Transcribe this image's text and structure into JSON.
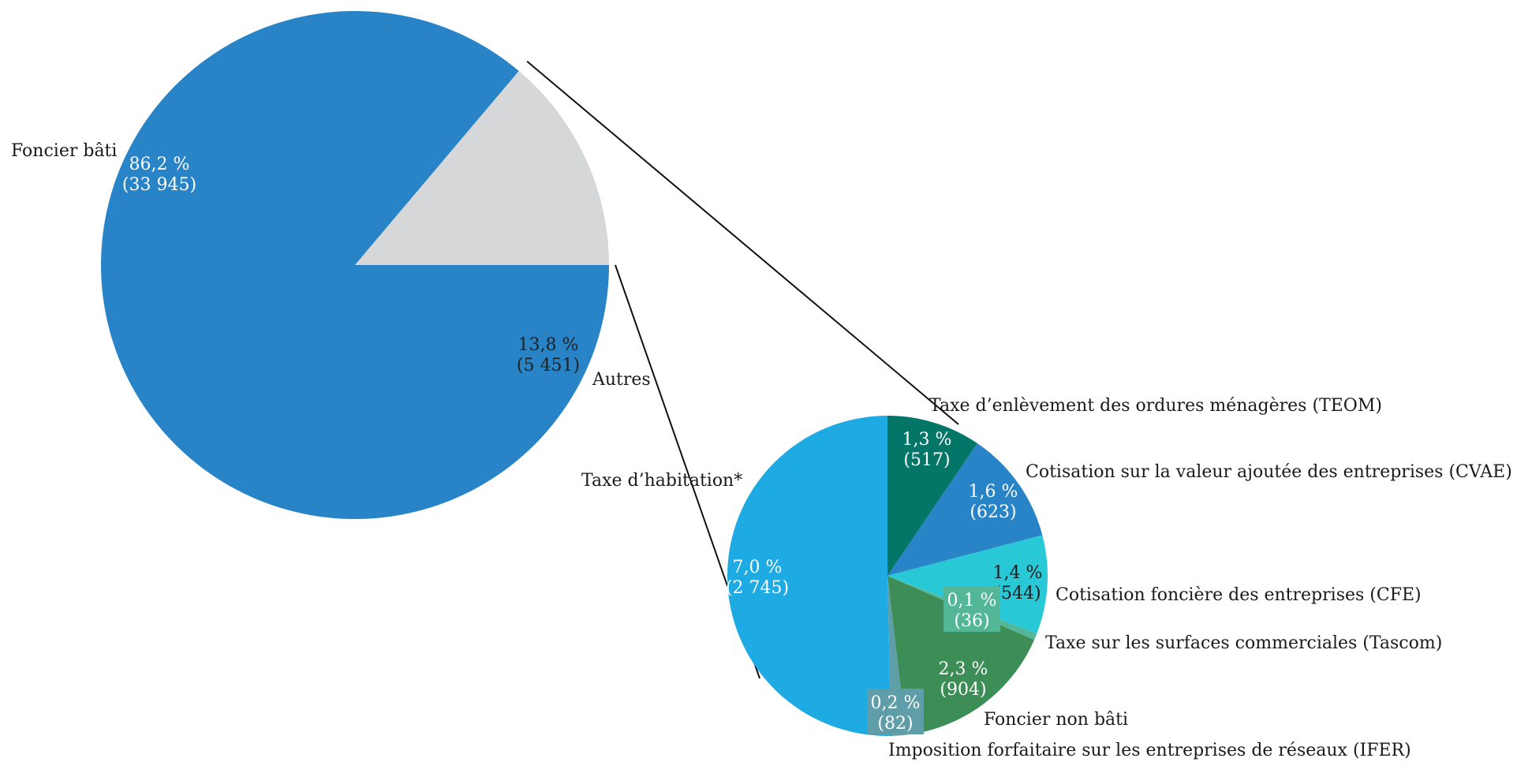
{
  "chart_data": [
    {
      "type": "pie",
      "title": "",
      "slices": [
        {
          "label": "Foncier bâti",
          "percent_label": "86,2 %",
          "value_label": "(33 945)",
          "value": 33945,
          "percent": 86.2,
          "color": "#2884c6",
          "text_color": "#ffffff"
        },
        {
          "label": "Autres",
          "percent_label": "13,8 %",
          "value_label": "(5 451)",
          "value": 5451,
          "percent": 13.8,
          "color": "#d6d7d9",
          "text_color": "#222222"
        }
      ]
    },
    {
      "type": "pie",
      "title": "",
      "breakdown_of": "Autres",
      "slices": [
        {
          "label": "Taxe d’enlèvement des ordures ménagères (TEOM)",
          "percent_label": "1,3 %",
          "value_label": "(517)",
          "value": 517,
          "percent": 1.3,
          "color": "#047668",
          "text_color": "#ffffff"
        },
        {
          "label": "Cotisation sur la valeur ajoutée des entreprises (CVAE)",
          "percent_label": "1,6 %",
          "value_label": "(623)",
          "value": 623,
          "percent": 1.6,
          "color": "#2884c6",
          "text_color": "#ffffff"
        },
        {
          "label": "Cotisation foncière des entreprises (CFE)",
          "percent_label": "1,4 %",
          "value_label": "(544)",
          "value": 544,
          "percent": 1.4,
          "color": "#28c8d6",
          "text_color": "#1a1a1a"
        },
        {
          "label": "Taxe sur les surfaces commerciales (Tascom)",
          "percent_label": "0,1 %",
          "value_label": "(36)",
          "value": 36,
          "percent": 0.1,
          "color": "#53b797",
          "text_color": "#ffffff"
        },
        {
          "label": "Foncier non bâti",
          "percent_label": "2,3 %",
          "value_label": "(904)",
          "value": 904,
          "percent": 2.3,
          "color": "#3d8d56",
          "text_color": "#ffffff"
        },
        {
          "label": "Imposition forfaitaire sur les entreprises de réseaux (IFER)",
          "percent_label": "0,2 %",
          "value_label": "(82)",
          "value": 82,
          "percent": 0.2,
          "color": "#5f9ea8",
          "text_color": "#ffffff"
        },
        {
          "label": "Taxe d’habitation*",
          "percent_label": "7,0 %",
          "value_label": "(2 745)",
          "value": 2745,
          "percent": 7.0,
          "color": "#1eaae2",
          "text_color": "#ffffff"
        }
      ]
    }
  ]
}
